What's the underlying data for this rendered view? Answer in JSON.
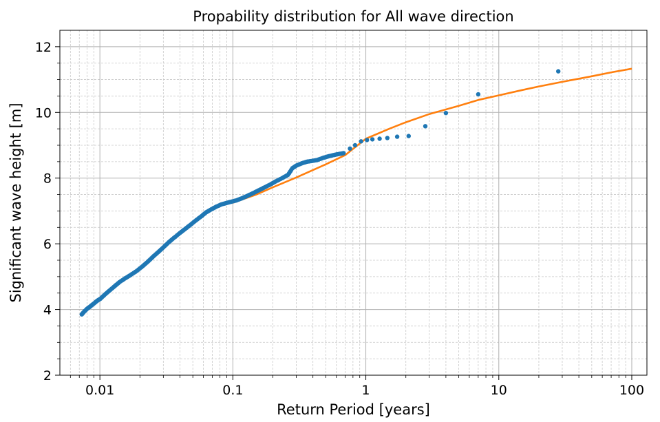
{
  "chart_data": {
    "type": "scatter",
    "title": "Propability distribution for All wave direction",
    "xlabel": "Return Period [years]",
    "ylabel": "Significant wave height [m]",
    "x_scale": "log",
    "xlim": [
      0.005,
      130
    ],
    "ylim": [
      2,
      12.5
    ],
    "x_ticks": [
      {
        "value": 0.01,
        "label": "0.01"
      },
      {
        "value": 0.1,
        "label": "0.1"
      },
      {
        "value": 1,
        "label": "1"
      },
      {
        "value": 10,
        "label": "10"
      },
      {
        "value": 100,
        "label": "100"
      }
    ],
    "y_ticks": [
      {
        "value": 2,
        "label": "2"
      },
      {
        "value": 4,
        "label": "4"
      },
      {
        "value": 6,
        "label": "6"
      },
      {
        "value": 8,
        "label": "8"
      },
      {
        "value": 10,
        "label": "10"
      },
      {
        "value": 12,
        "label": "12"
      }
    ],
    "grid": "major and minor",
    "colors": {
      "points": "#1f77b4",
      "fit": "#ff7f0e"
    },
    "series": [
      {
        "type": "scatter",
        "x": [
          0.0073,
          0.0076,
          0.008,
          0.0085,
          0.009,
          0.0095,
          0.0101,
          0.011,
          0.012,
          0.013,
          0.014,
          0.0155,
          0.017,
          0.019,
          0.021,
          0.023,
          0.025,
          0.0275,
          0.03,
          0.033,
          0.036,
          0.04,
          0.044,
          0.048,
          0.053,
          0.058,
          0.063,
          0.069,
          0.075,
          0.082,
          0.089,
          0.097,
          0.106,
          0.116,
          0.127,
          0.14,
          0.155,
          0.17,
          0.19,
          0.21,
          0.235,
          0.26,
          0.28,
          0.3,
          0.33,
          0.36,
          0.39,
          0.43,
          0.48,
          0.52,
          0.57,
          0.62,
          0.68,
          0.76,
          0.83,
          0.92,
          1.02,
          1.12,
          1.27,
          1.45,
          1.72,
          2.1,
          2.8,
          4.0,
          7.0,
          28.0
        ],
        "y": [
          3.85,
          3.93,
          4.02,
          4.1,
          4.18,
          4.26,
          4.33,
          4.47,
          4.6,
          4.72,
          4.83,
          4.95,
          5.05,
          5.18,
          5.32,
          5.46,
          5.6,
          5.75,
          5.89,
          6.05,
          6.18,
          6.33,
          6.46,
          6.58,
          6.72,
          6.84,
          6.96,
          7.05,
          7.13,
          7.2,
          7.24,
          7.28,
          7.32,
          7.38,
          7.45,
          7.53,
          7.62,
          7.7,
          7.8,
          7.9,
          8.0,
          8.1,
          8.3,
          8.38,
          8.45,
          8.5,
          8.52,
          8.55,
          8.62,
          8.66,
          8.7,
          8.73,
          8.76,
          8.9,
          9.0,
          9.12,
          9.16,
          9.18,
          9.2,
          9.22,
          9.26,
          9.28,
          9.58,
          9.98,
          10.55,
          11.25
        ]
      },
      {
        "type": "line",
        "x": [
          0.1,
          0.15,
          0.2,
          0.3,
          0.5,
          0.7,
          1.0,
          1.5,
          2,
          3,
          5,
          7,
          10,
          15,
          20,
          30,
          50,
          70,
          100
        ],
        "y": [
          7.25,
          7.5,
          7.72,
          8.02,
          8.42,
          8.7,
          9.2,
          9.5,
          9.7,
          9.95,
          10.2,
          10.38,
          10.52,
          10.68,
          10.79,
          10.93,
          11.1,
          11.22,
          11.33
        ]
      }
    ]
  }
}
